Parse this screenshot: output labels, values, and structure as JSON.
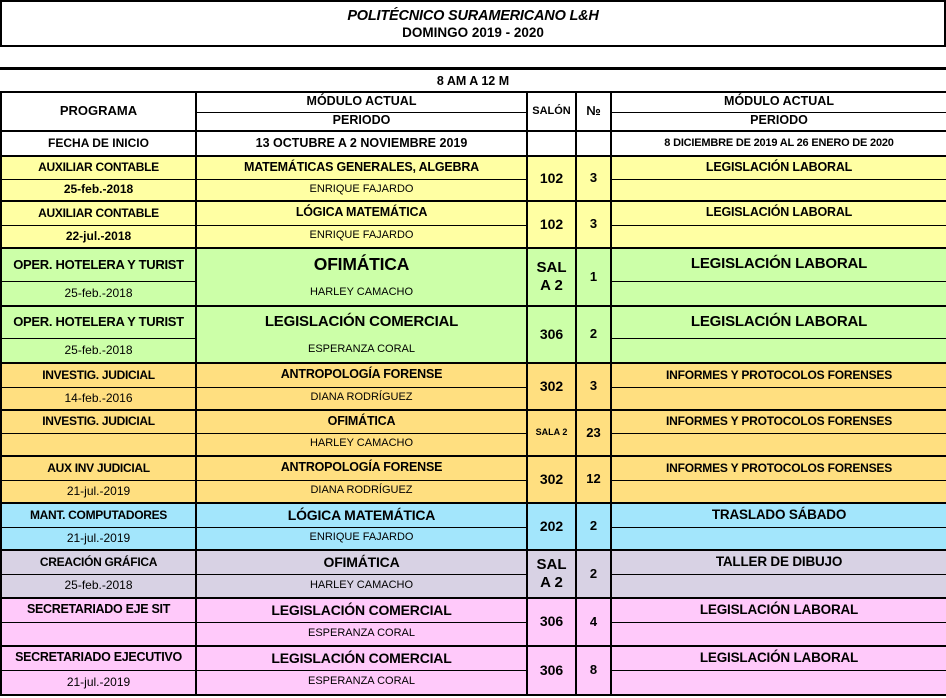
{
  "palette": {
    "yellow": "#FFFFA3",
    "green": "#CCFFA8",
    "orange": "#FFDF80",
    "cyan": "#A3E6FC",
    "lavender": "#D8D2E4",
    "pink": "#FFC9FA",
    "border": "#000000"
  },
  "header": {
    "title": "POLITÉCNICO SURAMERICANO L&H",
    "subtitle": "DOMINGO 2019 - 2020",
    "time_slot": "8 AM A 12 M"
  },
  "table": {
    "head": {
      "programa": "PROGRAMA",
      "fecha_de_inicio": "FECHA DE INICIO",
      "modulo_actual_left": "MÓDULO ACTUAL",
      "periodo_left": "PERIODO",
      "periodo_left_dates": "13 OCTUBRE A 2 NOVIEMBRE 2019",
      "salon": "SALÓN",
      "numero": "№",
      "modulo_actual_right": "MÓDULO ACTUAL",
      "periodo_right": "PERIODO",
      "periodo_right_dates": "8 DICIEMBRE DE 2019 AL 26 ENERO DE 2020"
    },
    "rows": [
      {
        "program": "AUXILIAR CONTABLE",
        "start_date": "25-feb.-2018",
        "module": "MATEMÁTICAS GENERALES, ALGEBRA",
        "teacher": "ENRIQUE FAJARDO",
        "salon": [
          "102"
        ],
        "num": "3",
        "next_module": "LEGISLACIÓN LABORAL",
        "color": "yellow"
      },
      {
        "program": "AUXILIAR CONTABLE",
        "start_date": "22-jul.-2018",
        "module": "LÓGICA MATEMÁTICA",
        "teacher": "ENRIQUE FAJARDO",
        "salon": [
          "102"
        ],
        "num": "3",
        "next_module": "LEGISLACIÓN LABORAL",
        "color": "yellow"
      },
      {
        "program": "OPER. HOTELERA Y TURIST",
        "start_date": "25-feb.-2018",
        "module": "OFIMÁTICA",
        "teacher": "HARLEY CAMACHO",
        "salon": [
          "SAL",
          "A 2"
        ],
        "num": "1",
        "next_module": "LEGISLACIÓN LABORAL",
        "color": "green"
      },
      {
        "program": "OPER. HOTELERA Y TURIST",
        "start_date": "25-feb.-2018",
        "module": "LEGISLACIÓN COMERCIAL",
        "teacher": "ESPERANZA CORAL",
        "salon": [
          "306"
        ],
        "num": "2",
        "next_module": "LEGISLACIÓN LABORAL",
        "color": "green"
      },
      {
        "program": "INVESTIG. JUDICIAL",
        "start_date": "14-feb.-2016",
        "module": "ANTROPOLOGÍA FORENSE",
        "teacher": "DIANA RODRÍGUEZ",
        "salon": [
          "302"
        ],
        "num": "3",
        "next_module": "INFORMES Y PROTOCOLOS FORENSES",
        "color": "orange"
      },
      {
        "program": "INVESTIG. JUDICIAL",
        "start_date": "",
        "module": "OFIMÁTICA",
        "teacher": "HARLEY CAMACHO",
        "salon": [
          "SALA 2"
        ],
        "num": "23",
        "next_module": "INFORMES Y PROTOCOLOS FORENSES",
        "color": "orange"
      },
      {
        "program": "AUX INV JUDICIAL",
        "start_date": "21-jul.-2019",
        "module": "ANTROPOLOGÍA FORENSE",
        "teacher": "DIANA RODRÍGUEZ",
        "salon": [
          "302"
        ],
        "num": "12",
        "next_module": "INFORMES Y PROTOCOLOS FORENSES",
        "color": "orange"
      },
      {
        "program": "MANT. COMPUTADORES",
        "start_date": "21-jul.-2019",
        "module": "LÓGICA MATEMÁTICA",
        "teacher": "ENRIQUE FAJARDO",
        "salon": [
          "202"
        ],
        "num": "2",
        "next_module": "TRASLADO SÁBADO",
        "color": "cyan"
      },
      {
        "program": "CREACIÓN GRÁFICA",
        "start_date": "25-feb.-2018",
        "module": "OFIMÁTICA",
        "teacher": "HARLEY CAMACHO",
        "salon": [
          "SAL",
          "A 2"
        ],
        "num": "2",
        "next_module": "TALLER DE DIBUJO",
        "color": "lavender"
      },
      {
        "program": "SECRETARIADO EJE SIT",
        "start_date": "",
        "module": "LEGISLACIÓN COMERCIAL",
        "teacher": "ESPERANZA CORAL",
        "salon": [
          "306"
        ],
        "num": "4",
        "next_module": "LEGISLACIÓN LABORAL",
        "color": "pink"
      },
      {
        "program": "SECRETARIADO EJECUTIVO",
        "start_date": "21-jul.-2019",
        "module": "LEGISLACIÓN COMERCIAL",
        "teacher": "ESPERANZA CORAL",
        "salon": [
          "306"
        ],
        "num": "8",
        "next_module": "LEGISLACIÓN LABORAL",
        "color": "pink"
      }
    ]
  }
}
